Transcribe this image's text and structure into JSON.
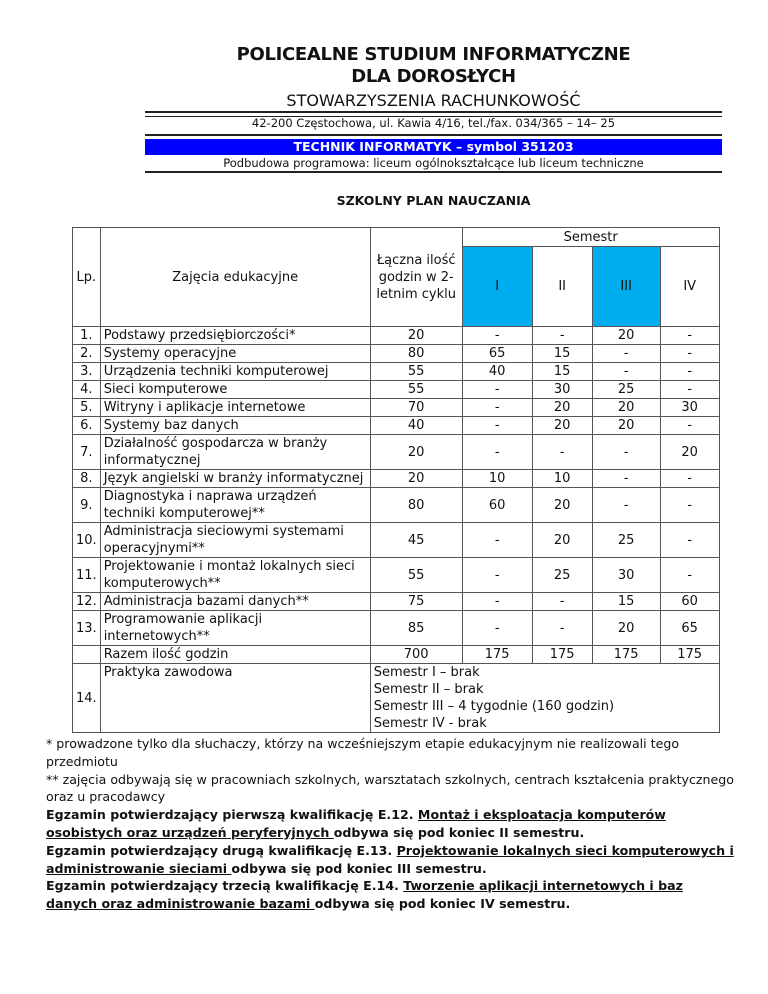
{
  "header": {
    "title_line1": "POLICEALNE  STUDIUM INFORMATYCZNE",
    "title_line2": "DLA DOROSŁYCH",
    "organization": "STOWARZYSZENIA RACHUNKOWOŚĆ",
    "address": "42-200 Częstochowa, ul. Kawia 4/16, tel./fax. 034/365 – 14– 25",
    "program": "TECHNIK INFORMATYK – symbol 351203",
    "basis": "Podbudowa programowa: liceum ogólnokształcące lub liceum techniczne",
    "plan_title": "SZKOLNY PLAN  NAUCZANIA"
  },
  "colors": {
    "program_bar": "#0000ff",
    "semester_highlight": "#00aeef"
  },
  "table": {
    "headers": {
      "lp": "Lp.",
      "subject": "Zajęcia edukacyjne",
      "total": "Łączna ilość godzin w 2-letnim cyklu",
      "semester": "Semestr",
      "semesters": [
        "I",
        "II",
        "III",
        "IV"
      ]
    },
    "rows": [
      {
        "lp": "1.",
        "subject": "Podstawy przedsiębiorczości*",
        "total": "20",
        "s": [
          "-",
          "-",
          "20",
          "-"
        ]
      },
      {
        "lp": "2.",
        "subject": "Systemy operacyjne",
        "total": "80",
        "s": [
          "65",
          "15",
          "-",
          "-"
        ]
      },
      {
        "lp": "3.",
        "subject": "Urządzenia techniki komputerowej",
        "total": "55",
        "s": [
          "40",
          "15",
          "-",
          "-"
        ]
      },
      {
        "lp": "4.",
        "subject": "Sieci komputerowe",
        "total": "55",
        "s": [
          "-",
          "30",
          "25",
          "-"
        ]
      },
      {
        "lp": "5.",
        "subject": "Witryny i aplikacje internetowe",
        "total": "70",
        "s": [
          "-",
          "20",
          "20",
          "30"
        ]
      },
      {
        "lp": "6.",
        "subject": "Systemy baz danych",
        "total": "40",
        "s": [
          "-",
          "20",
          "20",
          "-"
        ]
      },
      {
        "lp": "7.",
        "subject": "Działalność gospodarcza w branży informatycznej",
        "total": "20",
        "s": [
          "-",
          "-",
          "-",
          "20"
        ]
      },
      {
        "lp": "8.",
        "subject": "Język angielski w branży informatycznej",
        "total": "20",
        "s": [
          "10",
          "10",
          "-",
          "-"
        ]
      },
      {
        "lp": "9.",
        "subject": "Diagnostyka i naprawa urządzeń techniki komputerowej**",
        "total": "80",
        "s": [
          "60",
          "20",
          "-",
          "-"
        ]
      },
      {
        "lp": "10.",
        "subject": "Administracja sieciowymi systemami operacyjnymi**",
        "total": "45",
        "s": [
          "-",
          "20",
          "25",
          "-"
        ]
      },
      {
        "lp": "11.",
        "subject": "Projektowanie i montaż lokalnych sieci komputerowych**",
        "total": "55",
        "s": [
          "-",
          "25",
          "30",
          "-"
        ]
      },
      {
        "lp": "12.",
        "subject": "Administracja bazami danych**",
        "total": "75",
        "s": [
          "-",
          "-",
          "15",
          "60"
        ]
      },
      {
        "lp": "13.",
        "subject": "Programowanie aplikacji internetowych**",
        "total": "85",
        "s": [
          "-",
          "-",
          "20",
          "65"
        ]
      }
    ],
    "sum": {
      "label": "Razem ilość godzin",
      "total": "700",
      "s": [
        "175",
        "175",
        "175",
        "175"
      ]
    },
    "practice": {
      "lp": "14.",
      "label": "Praktyka zawodowa",
      "lines": [
        "Semestr I – brak",
        "Semestr II – brak",
        "Semestr III – 4 tygodnie (160 godzin)",
        "Semestr IV - brak"
      ]
    }
  },
  "notes": {
    "n1": "* prowadzone tylko dla słuchaczy, którzy na wcześniejszym etapie edukacyjnym nie realizowali tego przedmiotu",
    "n2": "** zajęcia odbywają się w pracowniach szkolnych, warsztatach szkolnych, centrach kształcenia praktycznego oraz u pracodawcy",
    "exams": [
      {
        "prefix": "Egzamin potwierdzający pierwszą kwalifikację E.12. ",
        "name": "Montaż i eksploatacja komputerów osobistych oraz urządzeń peryferyjnych ",
        "suffix": " odbywa się pod koniec II semestru."
      },
      {
        "prefix": "Egzamin potwierdzający drugą kwalifikację E.13. ",
        "name": "Projektowanie lokalnych sieci komputerowych i administrowanie sieciami ",
        "suffix": "odbywa się pod koniec III semestru."
      },
      {
        "prefix": "Egzamin potwierdzający trzecią kwalifikację E.14. ",
        "name": "Tworzenie aplikacji internetowych i baz danych oraz administrowanie bazami ",
        "suffix": " odbywa się pod koniec IV semestru."
      }
    ]
  }
}
